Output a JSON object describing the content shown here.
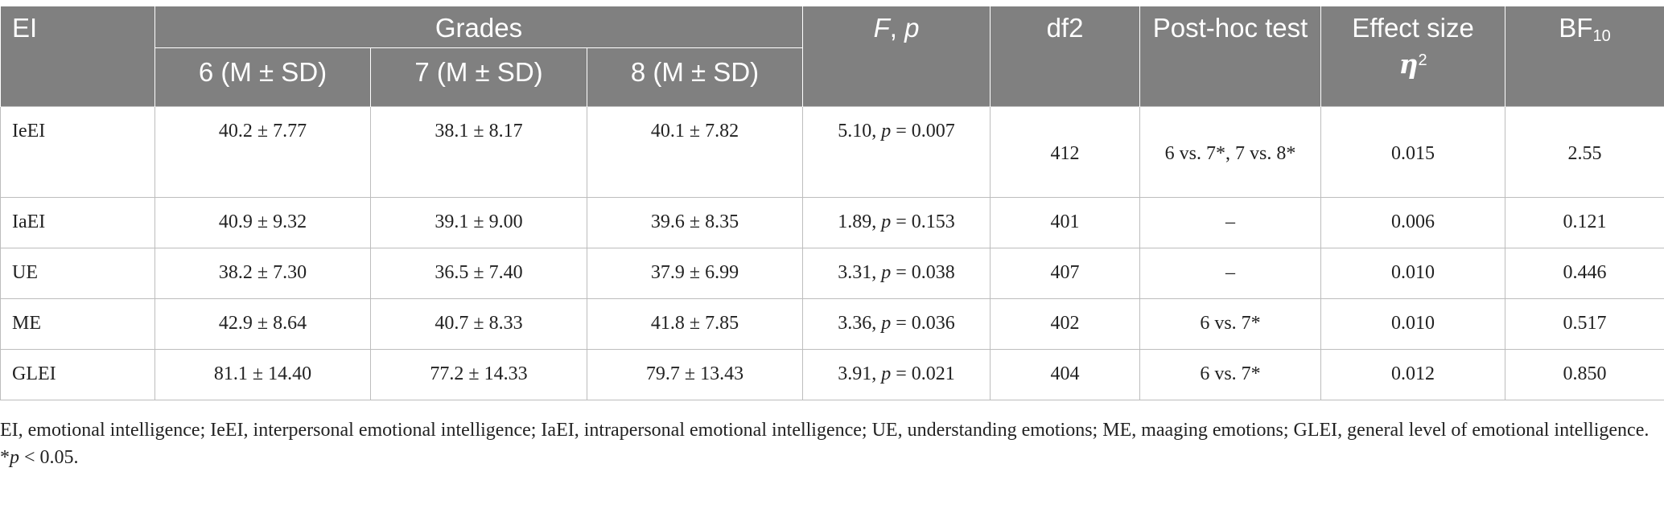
{
  "header": {
    "ei": "EI",
    "grades": "Grades",
    "g6": "6 (M ± SD)",
    "g7": "7 (M ± SD)",
    "g8": "8 (M ± SD)",
    "fp_f": "F",
    "fp_sep": ", ",
    "fp_p": "p",
    "df2": "df2",
    "posthoc": "Post-hoc test",
    "effect": "Effect size",
    "eta": "η",
    "eta_sup": "2",
    "bf": "BF",
    "bf_sub": "10"
  },
  "rows": [
    {
      "ei": "IeEI",
      "g6": "40.2 ± 7.77",
      "g7": "38.1 ± 8.17",
      "g8": "40.1 ± 7.82",
      "f": "5.10, ",
      "p": "p",
      "pval": " = 0.007",
      "df2": "412",
      "posthoc": "6 vs. 7*, 7 vs. 8*",
      "effect": "0.015",
      "bf": "2.55"
    },
    {
      "ei": "IaEI",
      "g6": "40.9 ± 9.32",
      "g7": "39.1 ± 9.00",
      "g8": "39.6 ± 8.35",
      "f": "1.89, ",
      "p": "p",
      "pval": " = 0.153",
      "df2": "401",
      "posthoc": "–",
      "effect": "0.006",
      "bf": "0.121"
    },
    {
      "ei": "UE",
      "g6": "38.2 ± 7.30",
      "g7": "36.5 ± 7.40",
      "g8": "37.9 ± 6.99",
      "f": "3.31, ",
      "p": "p",
      "pval": " = 0.038",
      "df2": "407",
      "posthoc": "–",
      "effect": "0.010",
      "bf": "0.446"
    },
    {
      "ei": "ME",
      "g6": "42.9 ± 8.64",
      "g7": "40.7 ± 8.33",
      "g8": "41.8 ± 7.85",
      "f": "3.36, ",
      "p": "p",
      "pval": " = 0.036",
      "df2": "402",
      "posthoc": "6 vs. 7*",
      "effect": "0.010",
      "bf": "0.517"
    },
    {
      "ei": "GLEI",
      "g6": "81.1 ± 14.40",
      "g7": "77.2 ± 14.33",
      "g8": "79.7 ± 13.43",
      "f": "3.91, ",
      "p": "p",
      "pval": " = 0.021",
      "df2": "404",
      "posthoc": "6 vs. 7*",
      "effect": "0.012",
      "bf": "0.850"
    }
  ],
  "notes": {
    "abbrev": "EI, emotional intelligence; IeEI, interpersonal emotional intelligence; IaEI, intrapersonal emotional intelligence; UE, understanding emotions; ME, maaging emotions; GLEI, general level of emotional intelligence.",
    "sig_star": "*",
    "sig_p": "p",
    "sig_rest": " < 0.05."
  }
}
